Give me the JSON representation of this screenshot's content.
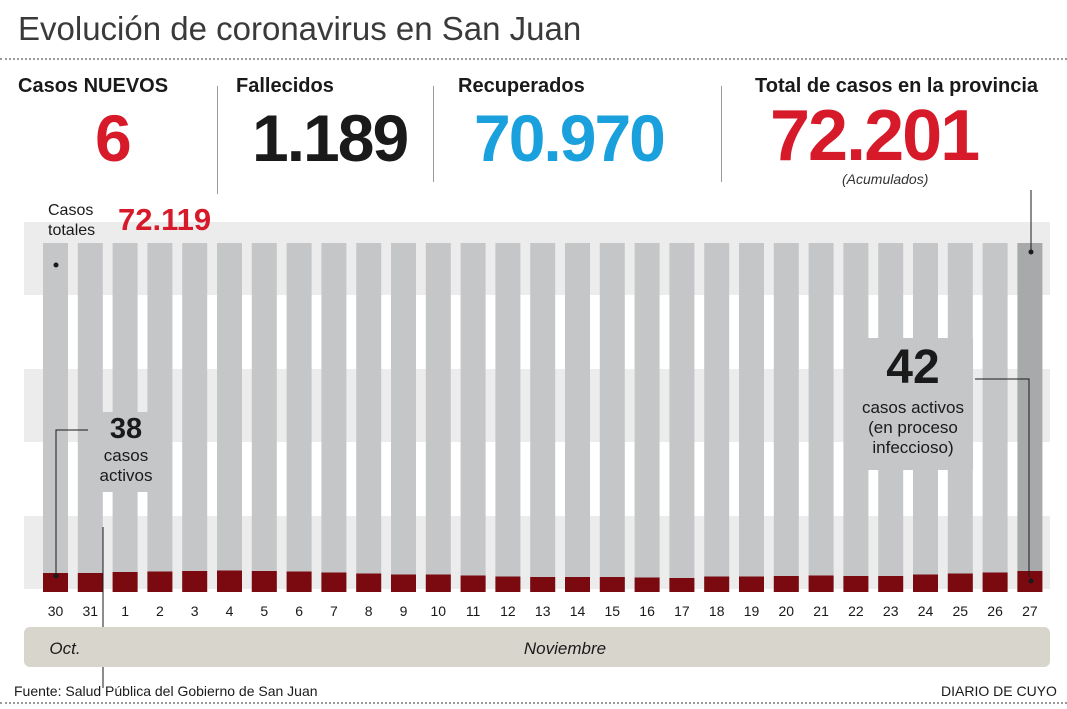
{
  "title": "Evolución de coronavirus en San Juan",
  "stats": {
    "new_cases_label": "Casos NUEVOS",
    "new_cases_value": "6",
    "deaths_label": "Fallecidos",
    "deaths_value": "1.189",
    "recovered_label": "Recuperados",
    "recovered_value": "70.970",
    "total_label": "Total de casos en la provincia",
    "total_value": "72.201",
    "total_note": "(Acumulados)"
  },
  "chart_data": {
    "type": "bar",
    "categories": [
      "30",
      "31",
      "1",
      "2",
      "3",
      "4",
      "5",
      "6",
      "7",
      "8",
      "9",
      "10",
      "11",
      "12",
      "13",
      "14",
      "15",
      "16",
      "17",
      "18",
      "19",
      "20",
      "21",
      "22",
      "23",
      "24",
      "25",
      "26",
      "27"
    ],
    "series": [
      {
        "values": [
          38,
          38,
          40,
          41,
          42,
          43,
          42,
          41,
          39,
          37,
          35,
          35,
          33,
          31,
          30,
          30,
          30,
          29,
          28,
          31,
          31,
          32,
          33,
          32,
          32,
          35,
          37,
          39,
          42
        ]
      }
    ],
    "month_labels": [
      "Oct.",
      "Noviembre"
    ],
    "colors": {
      "active": "#7a0a10",
      "total_bar": "#c4c6c8",
      "last_bar": "#a7a9ab",
      "red": "#d71a29",
      "blue": "#1aa0dc"
    },
    "annotations": {
      "start_total_label_1": "Casos",
      "start_total_label_2": "totales",
      "start_total_value": "72.119",
      "start_active_value": "38",
      "start_active_text_1": "casos",
      "start_active_text_2": "activos",
      "end_active_value": "42",
      "end_active_text_1": "casos activos",
      "end_active_text_2": "(en proceso",
      "end_active_text_3": "infeccioso)"
    }
  },
  "footer": {
    "source": "Fuente: Salud Pública del Gobierno de San Juan",
    "brand": "DIARIO DE CUYO"
  }
}
